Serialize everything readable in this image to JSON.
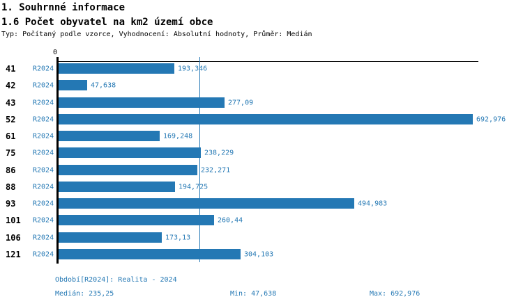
{
  "header": {
    "title1": "1. Souhrnné informace",
    "title2": "1.6 Počet obyvatel na km2 území obce",
    "subtitle": "Typ: Počítaný podle vzorce, Vyhodnocení: Absolutní hodnoty, Průměr: Medián"
  },
  "chart_data": {
    "type": "bar",
    "orientation": "horizontal",
    "title": "1.6 Počet obyvatel na km2 území obce",
    "categories": [
      "41",
      "42",
      "43",
      "52",
      "61",
      "75",
      "86",
      "88",
      "93",
      "101",
      "106",
      "121"
    ],
    "series": [
      {
        "name": "R2024",
        "values": [
          193.346,
          47.638,
          277.09,
          692.976,
          169.248,
          238.229,
          232.271,
          194.725,
          494.983,
          260.44,
          173.13,
          304.103
        ],
        "value_labels": [
          "193,346",
          "47,638",
          "277,09",
          "692,976",
          "169,248",
          "238,229",
          "232,271",
          "194,725",
          "494,983",
          "260,44",
          "173,13",
          "304,103"
        ]
      }
    ],
    "xlabel": "",
    "ylabel": "",
    "xlim": [
      0,
      702
    ],
    "x_tick_labels": [
      "0"
    ],
    "grid": false,
    "legend_position": "none",
    "median_value": 235.25,
    "colors": {
      "bar": "#2478b4",
      "median_line": "#2478b4",
      "value_text": "#2478b4",
      "series_text": "#2478b4",
      "axis": "#000000"
    }
  },
  "footer": {
    "period": "Období[R2024]: Realita - 2024",
    "median": "Medián: 235,25",
    "min": "Min: 47,638",
    "max": "Max: 692,976",
    "text_color": "#2478b4"
  }
}
